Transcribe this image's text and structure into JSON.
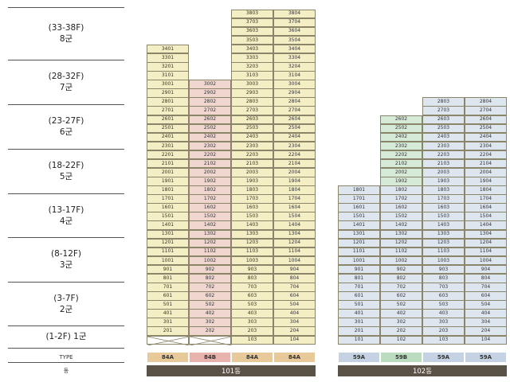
{
  "groups": [
    {
      "range": "(33-38F)",
      "name": "8군"
    },
    {
      "range": "(28-32F)",
      "name": "7군"
    },
    {
      "range": "(23-27F)",
      "name": "6군"
    },
    {
      "range": "(18-22F)",
      "name": "5군"
    },
    {
      "range": "(13-17F)",
      "name": "4군"
    },
    {
      "range": "(8-12F)",
      "name": "3군"
    },
    {
      "range": "(3-7F)",
      "name": "2군"
    },
    {
      "range": "(1-2F)",
      "name": "1군"
    }
  ],
  "labels": {
    "type": "TYPE",
    "dong": "동"
  },
  "buildings": [
    {
      "name": "101동",
      "columns": [
        {
          "unit": "01",
          "type": "84A",
          "floors": [
            [
              2,
              34
            ]
          ],
          "empty_floors": [
            1
          ],
          "color": "#f3eec4"
        },
        {
          "unit": "02",
          "type": "84B",
          "floors": [
            [
              2,
              30
            ]
          ],
          "empty_floors": [
            1
          ],
          "color": "#f1d6d0"
        },
        {
          "unit": "03",
          "type": "84A",
          "floors": [
            [
              1,
              38
            ]
          ],
          "empty_floors": [],
          "color": "#f3eec4"
        },
        {
          "unit": "04",
          "type": "84A",
          "floors": [
            [
              1,
              38
            ]
          ],
          "empty_floors": [],
          "color": "#f3eec4"
        }
      ]
    },
    {
      "name": "102동",
      "columns": [
        {
          "unit": "01",
          "type": "59A",
          "floors": [
            [
              1,
              18
            ]
          ],
          "empty_floors": [],
          "color": "#dde5ef"
        },
        {
          "unit": "02",
          "type": "59B",
          "floors": [
            [
              1,
              18
            ]
          ],
          "upper_floors": [
            [
              19,
              26
            ]
          ],
          "empty_floors": [],
          "color": "#dde5ef",
          "upper_color": "#d6ead8"
        },
        {
          "unit": "03",
          "type": "59A",
          "floors": [
            [
              1,
              28
            ]
          ],
          "empty_floors": [],
          "color": "#dde5ef"
        },
        {
          "unit": "04",
          "type": "59A",
          "floors": [
            [
              1,
              28
            ]
          ],
          "empty_floors": [],
          "color": "#dde5ef"
        }
      ]
    }
  ],
  "colors": {
    "type_84A": "#e8c99a",
    "type_84B": "#e9b3ad",
    "type_59A": "#c4d2e4",
    "type_59B": "#bcdcc0",
    "dong_bar": "#5a5246"
  }
}
